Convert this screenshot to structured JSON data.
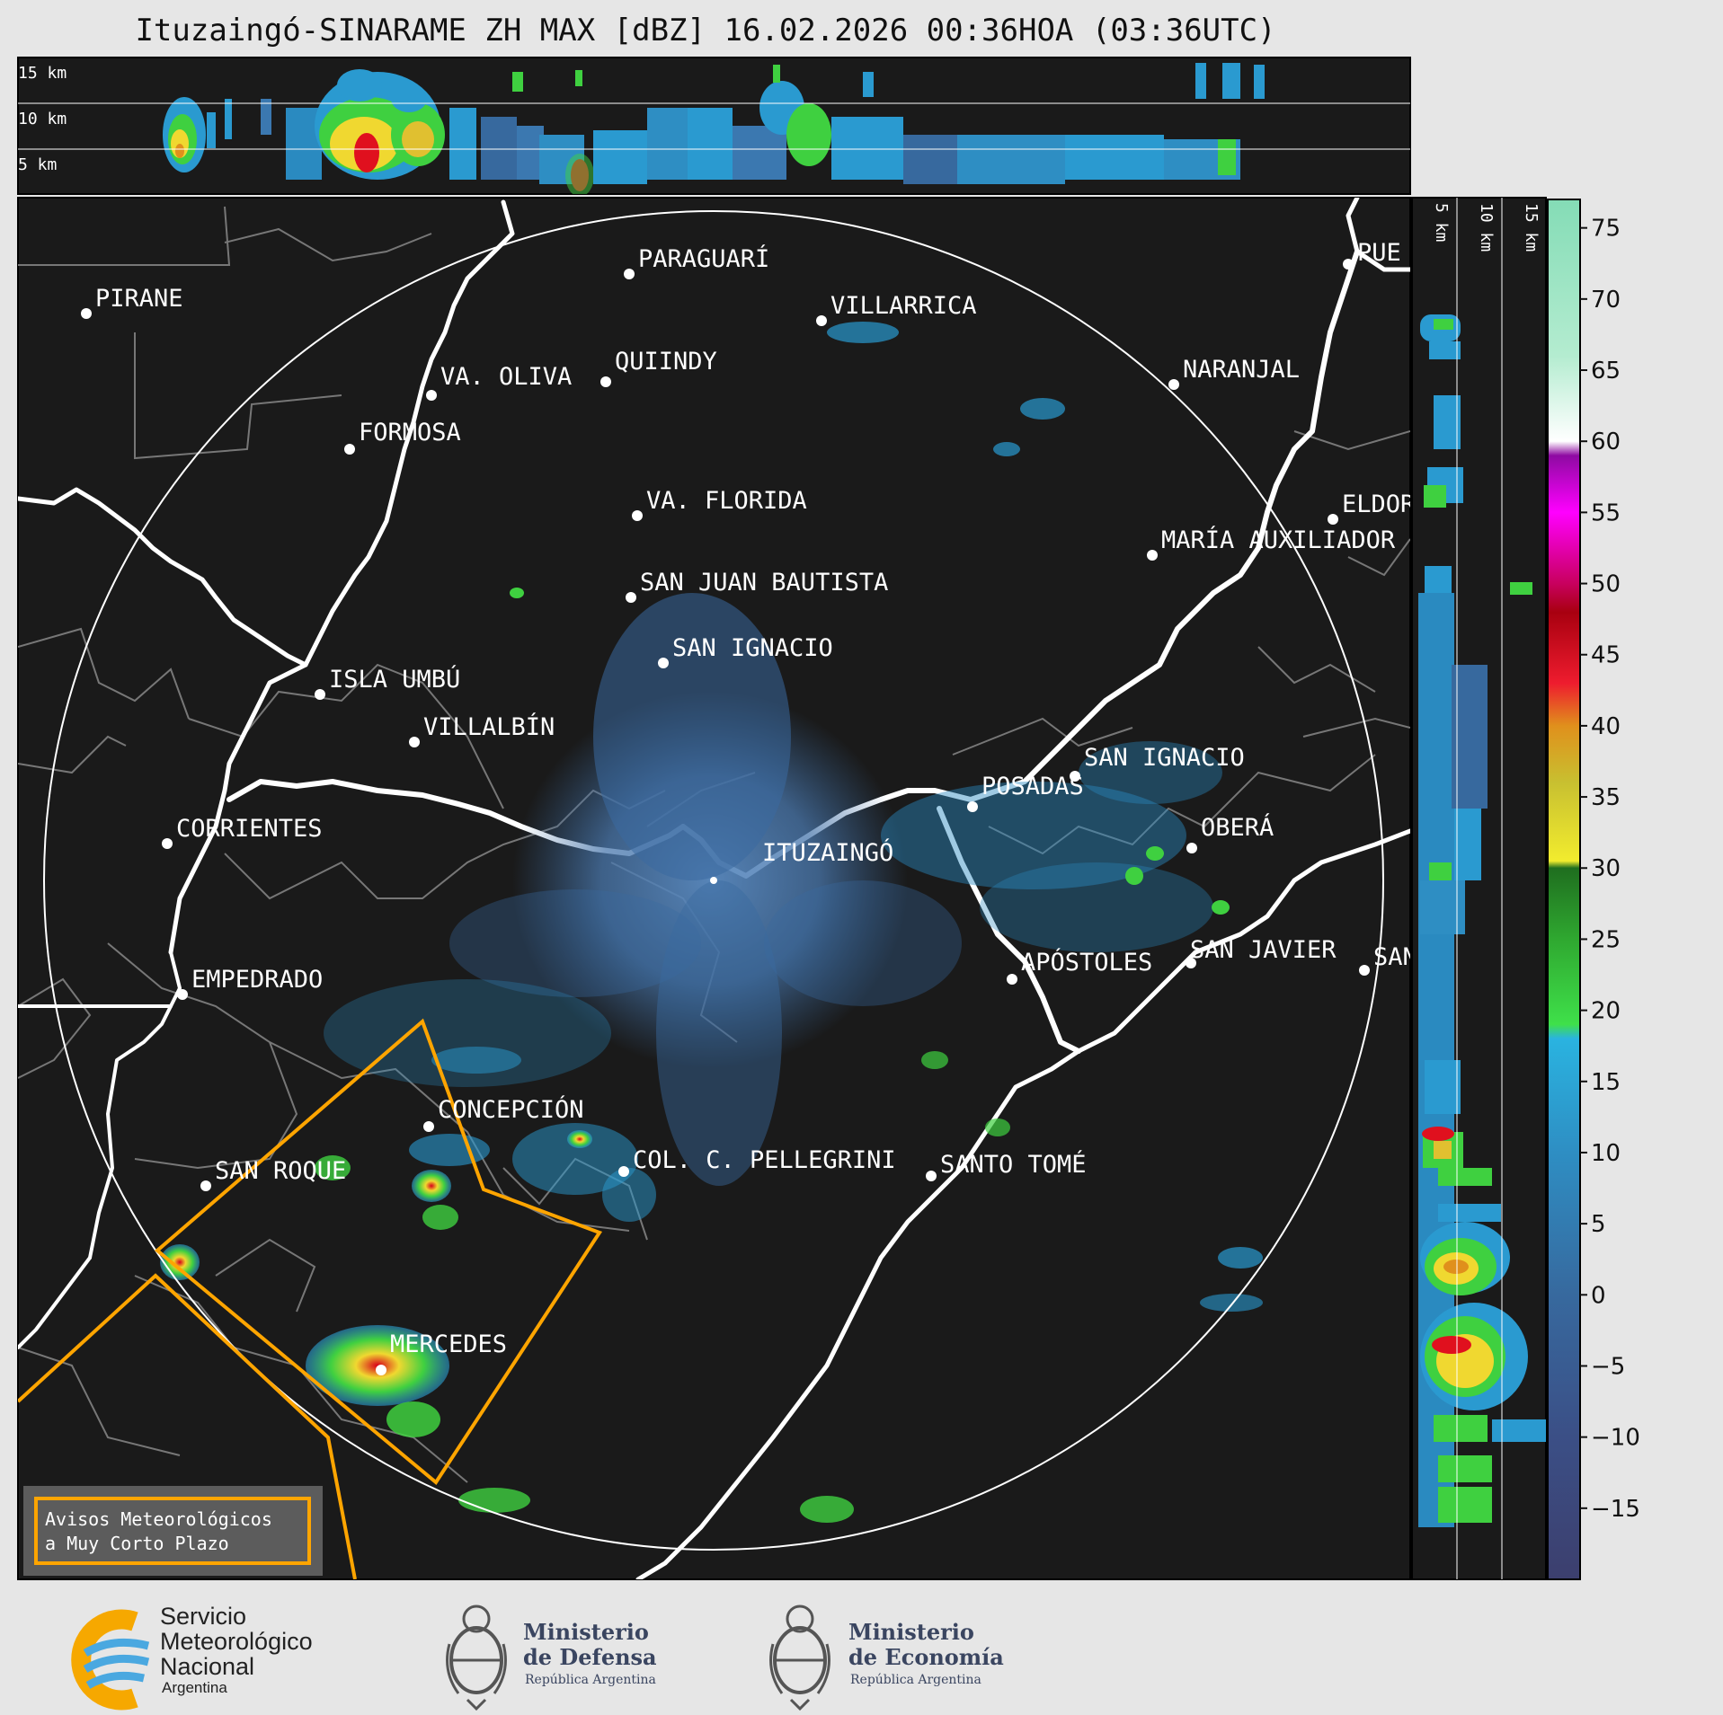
{
  "title": "Ituzaingó-SINARAME ZH MAX [dBZ] 16.02.2026 00:36HOA (03:36UTC)",
  "height_labels": [
    "15 km",
    "10 km",
    "5 km"
  ],
  "side_height_labels": [
    "5 km",
    "10 km",
    "15 km"
  ],
  "radar_site": "ITUZAINGÓ",
  "cities": [
    {
      "id": "pirane",
      "name": "PIRANE"
    },
    {
      "id": "paraguari",
      "name": "PARAGUARÍ"
    },
    {
      "id": "villarrica",
      "name": "VILLARRICA"
    },
    {
      "id": "quiindy",
      "name": "QUIINDY"
    },
    {
      "id": "va-oliva",
      "name": "VA. OLIVA"
    },
    {
      "id": "naranjal",
      "name": "NARANJAL"
    },
    {
      "id": "formosa",
      "name": "FORMOSA"
    },
    {
      "id": "va-florida",
      "name": "VA. FLORIDA"
    },
    {
      "id": "eldorado",
      "name": "ELDOR"
    },
    {
      "id": "maria-auxiliadora",
      "name": "MARÍA AUXILIADOR"
    },
    {
      "id": "san-juan-bautista",
      "name": "SAN JUAN BAUTISTA"
    },
    {
      "id": "san-ignacio-py",
      "name": "SAN IGNACIO"
    },
    {
      "id": "isla-umbu",
      "name": "ISLA UMBÚ"
    },
    {
      "id": "villalbin",
      "name": "VILLALBÍN"
    },
    {
      "id": "san-ignacio-ar",
      "name": "SAN IGNACIO"
    },
    {
      "id": "posadas",
      "name": "POSADAS"
    },
    {
      "id": "corrientes",
      "name": "CORRIENTES"
    },
    {
      "id": "obera",
      "name": "OBERÁ"
    },
    {
      "id": "empedrado",
      "name": "EMPEDRADO"
    },
    {
      "id": "apostoles",
      "name": "APÓSTOLES"
    },
    {
      "id": "san-javier",
      "name": "SAN JAVIER"
    },
    {
      "id": "san-vicente",
      "name": "SAN"
    },
    {
      "id": "concepcion",
      "name": "CONCEPCIÓN"
    },
    {
      "id": "col-pellegrini",
      "name": "COL. C. PELLEGRINI"
    },
    {
      "id": "santo-tome",
      "name": "SANTO TOMÉ"
    },
    {
      "id": "san-roque",
      "name": "SAN ROQUE"
    },
    {
      "id": "mercedes",
      "name": "MERCEDES"
    },
    {
      "id": "puerto",
      "name": "PUE"
    }
  ],
  "legend_box": {
    "line1": "Avisos Meteorológicos",
    "line2": "a Muy Corto Plazo"
  },
  "colorbar": {
    "unit": "dBZ",
    "ticks": [
      "75",
      "70",
      "65",
      "60",
      "55",
      "50",
      "45",
      "40",
      "35",
      "30",
      "25",
      "20",
      "15",
      "10",
      "5",
      "0",
      "−5",
      "−10",
      "−15"
    ],
    "range": [
      -20,
      77
    ],
    "stops": [
      {
        "v": -20,
        "c": "#3c3f6e"
      },
      {
        "v": -10,
        "c": "#3b4f86"
      },
      {
        "v": 0,
        "c": "#37699e"
      },
      {
        "v": 10,
        "c": "#2e8ec3"
      },
      {
        "v": 18,
        "c": "#2ab3e0"
      },
      {
        "v": 19,
        "c": "#3fe04a"
      },
      {
        "v": 25,
        "c": "#2fa830"
      },
      {
        "v": 30,
        "c": "#1f6e1f"
      },
      {
        "v": 30.5,
        "c": "#f2ec2e"
      },
      {
        "v": 36,
        "c": "#c8c030"
      },
      {
        "v": 40,
        "c": "#e0901c"
      },
      {
        "v": 43,
        "c": "#ee1c2e"
      },
      {
        "v": 48,
        "c": "#a80010"
      },
      {
        "v": 50,
        "c": "#c8005e"
      },
      {
        "v": 55,
        "c": "#ff00ff"
      },
      {
        "v": 59,
        "c": "#8e0aa2"
      },
      {
        "v": 60,
        "c": "#ffffff"
      },
      {
        "v": 66,
        "c": "#b4ecd0"
      },
      {
        "v": 77,
        "c": "#84dcb6"
      }
    ]
  },
  "warning_color": "#ffa500",
  "logos": {
    "smn": {
      "line1": "Servicio",
      "line2": "Meteorológico",
      "line3": "Nacional",
      "line4": "Argentina"
    },
    "defensa": {
      "line1": "Ministerio",
      "line2": "de Defensa",
      "line3": "República Argentina"
    },
    "economia": {
      "line1": "Ministerio",
      "line2": "de Economía",
      "line3": "República Argentina"
    }
  }
}
